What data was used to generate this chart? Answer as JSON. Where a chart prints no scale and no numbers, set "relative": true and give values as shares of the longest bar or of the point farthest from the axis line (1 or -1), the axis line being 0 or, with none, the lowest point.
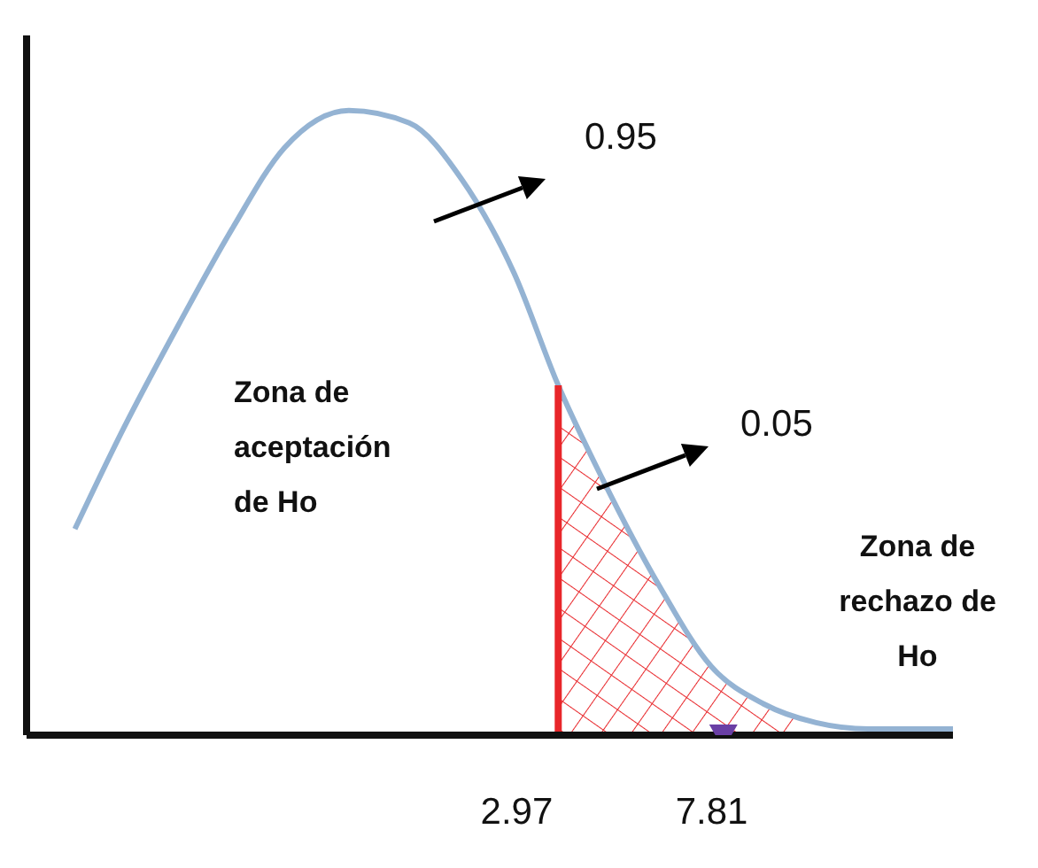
{
  "chart_data": {
    "type": "line",
    "relative": true,
    "xlim": [
      -9.2,
      13.8
    ],
    "xticks": [
      2.97,
      7.81
    ],
    "series": [
      {
        "color": "#94b3d3",
        "x": [
          -8.0,
          -6.8,
          -5.4,
          -4.1,
          -2.8,
          -1.2,
          0.3,
          1.6,
          2.9,
          4.0,
          5.1,
          6.5,
          7.8,
          9.1,
          10.4,
          11.7,
          13.8
        ],
        "values": [
          0.33,
          0.49,
          0.66,
          0.81,
          0.94,
          1.0,
          0.98,
          0.89,
          0.74,
          0.56,
          0.41,
          0.24,
          0.11,
          0.05,
          0.02,
          0.01,
          0.01
        ]
      },
      {
        "type": "area",
        "color": "#e8262a",
        "x": [
          4.0,
          5.1,
          6.5,
          7.8,
          9.1,
          10.0
        ],
        "values": [
          0.56,
          0.41,
          0.24,
          0.11,
          0.05,
          0.03
        ]
      },
      {
        "type": "scatter",
        "color": "#6a3fa5",
        "marker": "triangle",
        "x": [
          8.1
        ],
        "values": [
          0
        ]
      }
    ],
    "ref_lines": [
      {
        "axis": "x",
        "value": 4.0,
        "color": "#e8262a"
      }
    ],
    "annotations": [
      "0.95",
      "0.05",
      "Zona de aceptación de Ho",
      "Zona de rechazo de Ho"
    ]
  }
}
